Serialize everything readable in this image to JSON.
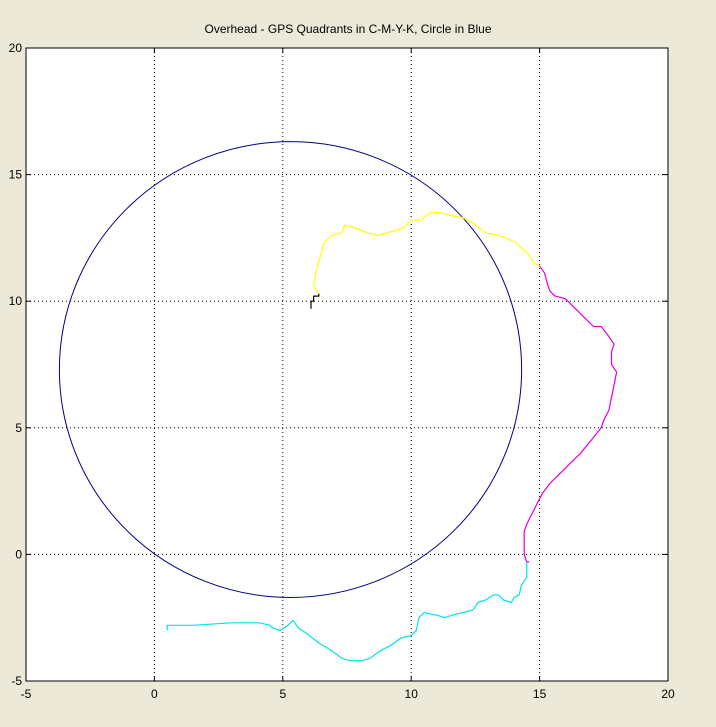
{
  "chart_data": {
    "type": "line",
    "title": "Overhead - GPS Quadrants in C-M-Y-K, Circle in Blue",
    "xlabel": "",
    "ylabel": "",
    "xlim": [
      -5,
      20
    ],
    "ylim": [
      -5,
      20
    ],
    "xticks": [
      -5,
      0,
      5,
      10,
      15,
      20
    ],
    "yticks": [
      -5,
      0,
      5,
      10,
      15,
      20
    ],
    "grid": true,
    "colors": {
      "background": "#ece9d8",
      "axes": "#ffffff",
      "grid": "#000000",
      "circle": "#000080",
      "cyan": "#00e5e5",
      "magenta": "#e000e0",
      "yellow": "#ffff00",
      "black": "#000000"
    },
    "circle": {
      "cx": 5.3,
      "cy": 7.3,
      "r": 9.0
    },
    "series": [
      {
        "color": "black",
        "points": [
          [
            6.1,
            9.7
          ],
          [
            6.1,
            10.0
          ],
          [
            6.2,
            10.0
          ],
          [
            6.2,
            10.2
          ],
          [
            6.4,
            10.2
          ],
          [
            6.4,
            10.3
          ]
        ]
      },
      {
        "color": "yellow",
        "points": [
          [
            6.4,
            10.3
          ],
          [
            6.2,
            10.6
          ],
          [
            6.3,
            11.2
          ],
          [
            6.5,
            11.9
          ],
          [
            6.6,
            12.3
          ],
          [
            6.9,
            12.6
          ],
          [
            7.3,
            12.7
          ],
          [
            7.4,
            13.0
          ],
          [
            7.8,
            12.9
          ],
          [
            8.3,
            12.7
          ],
          [
            8.7,
            12.6
          ],
          [
            9.1,
            12.7
          ],
          [
            9.4,
            12.8
          ],
          [
            9.7,
            12.9
          ],
          [
            9.9,
            13.1
          ],
          [
            10.0,
            13.2
          ],
          [
            10.4,
            13.2
          ],
          [
            10.6,
            13.4
          ],
          [
            10.8,
            13.5
          ],
          [
            11.1,
            13.5
          ],
          [
            11.5,
            13.4
          ],
          [
            12.0,
            13.3
          ],
          [
            12.4,
            13.1
          ],
          [
            12.9,
            12.7
          ],
          [
            13.4,
            12.6
          ],
          [
            13.7,
            12.5
          ],
          [
            14.1,
            12.3
          ],
          [
            14.4,
            12.0
          ],
          [
            14.6,
            11.8
          ],
          [
            14.8,
            11.5
          ],
          [
            15.0,
            11.4
          ]
        ]
      },
      {
        "color": "magenta",
        "points": [
          [
            15.0,
            11.4
          ],
          [
            15.2,
            11.1
          ],
          [
            15.3,
            10.7
          ],
          [
            15.4,
            10.4
          ],
          [
            15.6,
            10.2
          ],
          [
            16.0,
            10.1
          ],
          [
            16.4,
            9.7
          ],
          [
            16.8,
            9.3
          ],
          [
            17.1,
            9.0
          ],
          [
            17.4,
            9.0
          ],
          [
            17.7,
            8.6
          ],
          [
            17.9,
            8.3
          ],
          [
            17.8,
            8.0
          ],
          [
            17.8,
            7.5
          ],
          [
            18.0,
            7.2
          ],
          [
            17.9,
            6.7
          ],
          [
            17.8,
            6.2
          ],
          [
            17.7,
            5.7
          ],
          [
            17.5,
            5.3
          ],
          [
            17.4,
            5.0
          ],
          [
            17.0,
            4.5
          ],
          [
            16.6,
            4.0
          ],
          [
            16.2,
            3.6
          ],
          [
            15.8,
            3.2
          ],
          [
            15.4,
            2.8
          ],
          [
            15.1,
            2.4
          ],
          [
            14.9,
            2.0
          ],
          [
            14.7,
            1.6
          ],
          [
            14.5,
            1.2
          ],
          [
            14.4,
            0.9
          ],
          [
            14.4,
            0.0
          ],
          [
            14.5,
            -0.3
          ],
          [
            14.6,
            -0.3
          ]
        ]
      },
      {
        "color": "cyan",
        "points": [
          [
            14.5,
            -0.3
          ],
          [
            14.5,
            -0.9
          ],
          [
            14.3,
            -1.2
          ],
          [
            14.2,
            -1.6
          ],
          [
            14.0,
            -1.7
          ],
          [
            13.9,
            -1.9
          ],
          [
            13.6,
            -1.8
          ],
          [
            13.4,
            -1.6
          ],
          [
            13.2,
            -1.6
          ],
          [
            12.9,
            -1.8
          ],
          [
            12.6,
            -1.9
          ],
          [
            12.4,
            -2.2
          ],
          [
            12.0,
            -2.3
          ],
          [
            11.6,
            -2.4
          ],
          [
            11.3,
            -2.5
          ],
          [
            11.0,
            -2.4
          ],
          [
            10.5,
            -2.3
          ],
          [
            10.3,
            -2.5
          ],
          [
            10.2,
            -3.0
          ],
          [
            10.0,
            -3.2
          ],
          [
            9.6,
            -3.3
          ],
          [
            9.2,
            -3.6
          ],
          [
            8.8,
            -3.8
          ],
          [
            8.4,
            -4.1
          ],
          [
            8.1,
            -4.2
          ],
          [
            7.6,
            -4.2
          ],
          [
            7.3,
            -4.1
          ],
          [
            6.9,
            -3.8
          ],
          [
            6.4,
            -3.5
          ],
          [
            5.9,
            -3.1
          ],
          [
            5.6,
            -2.9
          ],
          [
            5.4,
            -2.6
          ],
          [
            5.2,
            -2.8
          ],
          [
            4.9,
            -3.0
          ],
          [
            4.6,
            -2.9
          ],
          [
            4.5,
            -2.8
          ],
          [
            4.1,
            -2.7
          ],
          [
            3.0,
            -2.7
          ],
          [
            1.5,
            -2.8
          ],
          [
            0.5,
            -2.8
          ],
          [
            0.5,
            -3.0
          ]
        ]
      }
    ]
  }
}
